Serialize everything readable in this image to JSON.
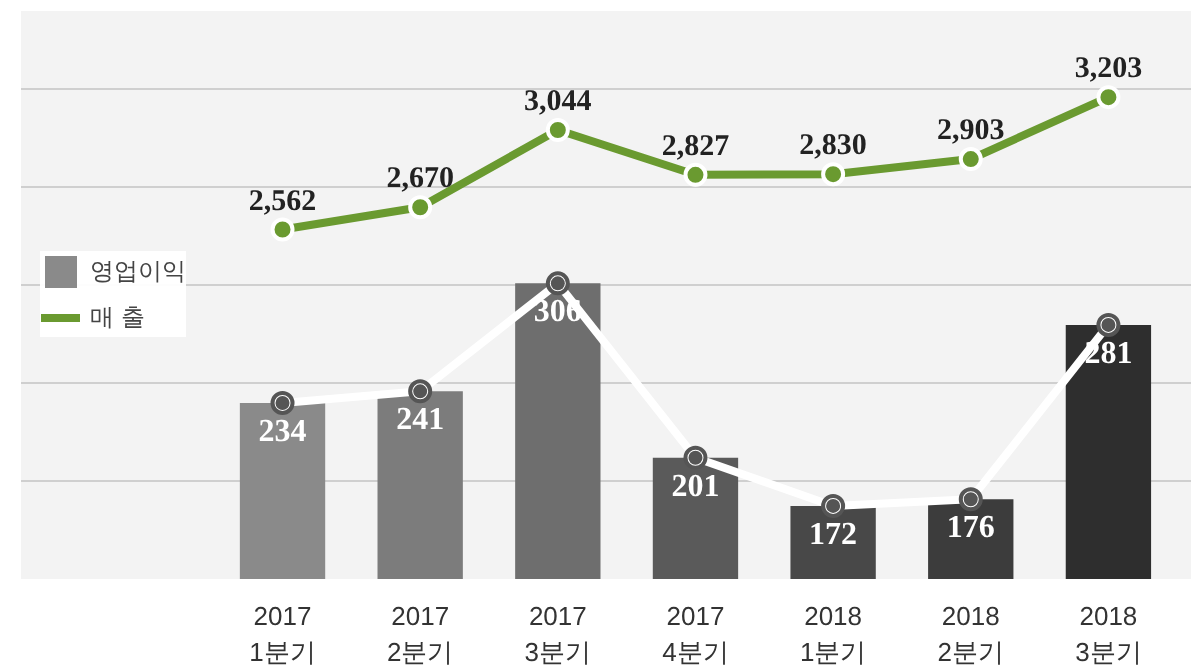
{
  "chart_data": {
    "type": "bar",
    "categories": [
      "2017\n1분기",
      "2017\n2분기",
      "2017\n3분기",
      "2017\n4분기",
      "2018\n1분기",
      "2018\n2분기",
      "2018\n3분기"
    ],
    "series": [
      {
        "name": "영업이익",
        "values": [
          234,
          241,
          306,
          201,
          172,
          176,
          281
        ],
        "colors": [
          "#8a8a8a",
          "#7c7c7c",
          "#6e6e6e",
          "#5a5a5a",
          "#484848",
          "#3c3c3c",
          "#2e2e2e"
        ]
      },
      {
        "type": "line",
        "color": "#ffffff",
        "values": [
          234,
          241,
          306,
          201,
          172,
          176,
          281
        ],
        "value_labels": [
          null,
          null,
          null,
          null,
          null,
          null,
          null
        ]
      },
      {
        "name": "매 출",
        "type": "line",
        "axis": "y2",
        "color": "#6a9a30",
        "values": [
          2562,
          2670,
          3044,
          2827,
          2830,
          2903,
          3203
        ],
        "value_labels": [
          "2,562",
          "2,670",
          "3,044",
          "2,827",
          "2,830",
          "2,903",
          "3,203"
        ]
      }
    ],
    "ylim": [
      128,
      470
    ],
    "yticks": [
      {
        "value": 128,
        "label": null
      },
      {
        "value": 187,
        "label": null
      },
      {
        "value": 246,
        "label": null
      },
      {
        "value": 305,
        "label": null
      },
      {
        "value": 364,
        "label": null
      },
      {
        "value": 423,
        "label": null
      }
    ],
    "y2lim": [
      870,
      3620
    ],
    "grid": "y",
    "tick_labels": "x",
    "marker": "circle",
    "legend": "left",
    "data_labels": true
  }
}
